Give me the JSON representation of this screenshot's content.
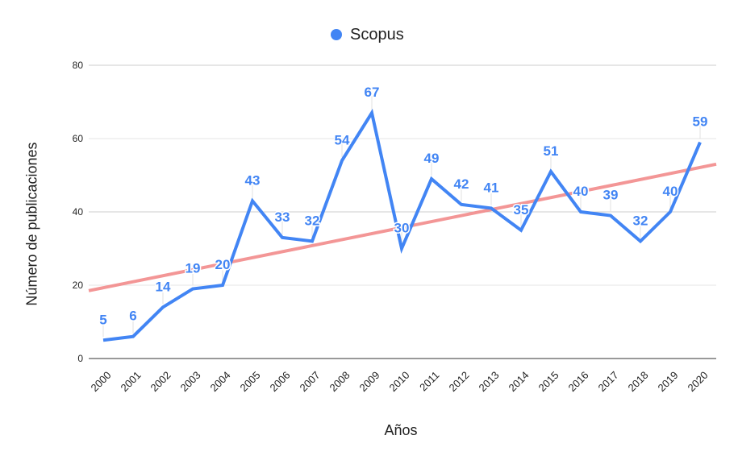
{
  "chart_data": {
    "type": "line",
    "title": "",
    "legend": [
      {
        "name": "Scopus",
        "color": "#4285f4"
      }
    ],
    "legend_position": "top",
    "xlabel": "Años",
    "ylabel": "Número de publicaciones",
    "ylim": [
      0,
      80
    ],
    "yticks": [
      0,
      20,
      40,
      60,
      80
    ],
    "grid": true,
    "categories": [
      "2000",
      "2001",
      "2002",
      "2003",
      "2004",
      "2005",
      "2006",
      "2007",
      "2008",
      "2009",
      "2010",
      "2011",
      "2012",
      "2013",
      "2014",
      "2015",
      "2016",
      "2017",
      "2018",
      "2019",
      "2020"
    ],
    "series": [
      {
        "name": "Scopus",
        "color": "#4285f4",
        "values": [
          5,
          6,
          14,
          19,
          20,
          43,
          33,
          32,
          54,
          67,
          30,
          49,
          42,
          41,
          35,
          51,
          40,
          39,
          32,
          40,
          59
        ],
        "data_labels": true
      }
    ],
    "trendline": {
      "type": "linear",
      "color": "#f28b8b",
      "start_value": 18.5,
      "end_value": 53
    }
  },
  "legend": {
    "label": "Scopus"
  },
  "axes": {
    "xlabel": "Años",
    "ylabel": "Número de publicaciones"
  }
}
